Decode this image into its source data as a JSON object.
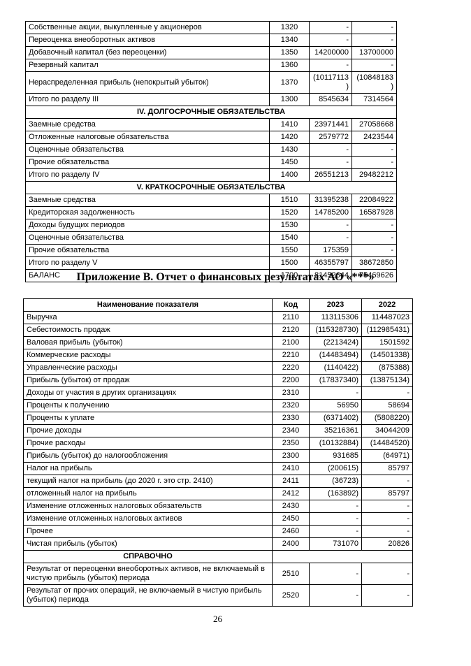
{
  "appendix_title": "Приложение В. Отчет о финансовых результатах АО «***»",
  "page_number": "26",
  "balance_table": {
    "rows": [
      {
        "type": "data",
        "label": "Собственные акции, выкупленные у акционеров",
        "code": "1320",
        "v2023": "-",
        "v2022": "-"
      },
      {
        "type": "data",
        "label": "Переоценка внеоборотных активов",
        "code": "1340",
        "v2023": "-",
        "v2022": "-"
      },
      {
        "type": "data",
        "label": "Добавочный капитал (без переоценки)",
        "code": "1350",
        "v2023": "14200000",
        "v2022": "13700000"
      },
      {
        "type": "data",
        "label": "Резервный капитал",
        "code": "1360",
        "v2023": "-",
        "v2022": "-"
      },
      {
        "type": "data",
        "label": "Нераспределенная прибыль (непокрытый убыток)",
        "code": "1370",
        "v2023": "(10117113)",
        "v2022": "(10848183)"
      },
      {
        "type": "data",
        "label": "Итого по разделу III",
        "code": "1300",
        "v2023": "8545634",
        "v2022": "7314564"
      },
      {
        "type": "section",
        "label": "IV. ДОЛГОСРОЧНЫЕ ОБЯЗАТЕЛЬСТВА"
      },
      {
        "type": "data",
        "label": "Заемные средства",
        "code": "1410",
        "v2023": "23971441",
        "v2022": "27058668"
      },
      {
        "type": "data",
        "label": "Отложенные налоговые обязательства",
        "code": "1420",
        "v2023": "2579772",
        "v2022": "2423544"
      },
      {
        "type": "data",
        "label": "Оценочные обязательства",
        "code": "1430",
        "v2023": "-",
        "v2022": "-"
      },
      {
        "type": "data",
        "label": "Прочие обязательства",
        "code": "1450",
        "v2023": "-",
        "v2022": "-"
      },
      {
        "type": "data",
        "label": "Итого по разделу IV",
        "code": "1400",
        "v2023": "26551213",
        "v2022": "29482212"
      },
      {
        "type": "section",
        "label": "V. КРАТКОСРОЧНЫЕ ОБЯЗАТЕЛЬСТВА"
      },
      {
        "type": "data",
        "label": "Заемные средства",
        "code": "1510",
        "v2023": "31395238",
        "v2022": "22084922"
      },
      {
        "type": "data",
        "label": "Кредиторская задолженность",
        "code": "1520",
        "v2023": "14785200",
        "v2022": "16587928"
      },
      {
        "type": "data",
        "label": "Доходы будущих периодов",
        "code": "1530",
        "v2023": "-",
        "v2022": "-"
      },
      {
        "type": "data",
        "label": "Оценочные обязательства",
        "code": "1540",
        "v2023": "-",
        "v2022": "-"
      },
      {
        "type": "data",
        "label": "Прочие обязательства",
        "code": "1550",
        "v2023": "175359",
        "v2022": "-"
      },
      {
        "type": "data",
        "label": "Итого по разделу V",
        "code": "1500",
        "v2023": "46355797",
        "v2022": "38672850"
      },
      {
        "type": "data",
        "label": "БАЛАНС",
        "code": "1700",
        "v2023": "81452644",
        "v2022": "75469626"
      }
    ]
  },
  "income_table": {
    "header": {
      "label": "Наименование показателя",
      "code": "Код",
      "y2023": "2023",
      "y2022": "2022"
    },
    "rows": [
      {
        "type": "data",
        "label": "Выручка",
        "code": "2110",
        "v2023": "113115306",
        "v2022": "114487023"
      },
      {
        "type": "data",
        "label": "Себестоимость продаж",
        "code": "2120",
        "v2023": "(115328730)",
        "v2022": "(112985431)"
      },
      {
        "type": "data",
        "label": "Валовая прибыль (убыток)",
        "code": "2100",
        "v2023": "(2213424)",
        "v2022": "1501592"
      },
      {
        "type": "data",
        "label": "Коммерческие расходы",
        "code": "2210",
        "v2023": "(14483494)",
        "v2022": "(14501338)"
      },
      {
        "type": "data",
        "label": "Управленческие расходы",
        "code": "2220",
        "v2023": "(1140422)",
        "v2022": "(875388)"
      },
      {
        "type": "data",
        "label": "Прибыль (убыток) от продаж",
        "code": "2200",
        "v2023": "(17837340)",
        "v2022": "(13875134)"
      },
      {
        "type": "data",
        "label": "Доходы от участия в других организациях",
        "code": "2310",
        "v2023": "-",
        "v2022": "-"
      },
      {
        "type": "data",
        "label": "Проценты к получению",
        "code": "2320",
        "v2023": "56950",
        "v2022": "58694"
      },
      {
        "type": "data",
        "label": "Проценты к уплате",
        "code": "2330",
        "v2023": "(6371402)",
        "v2022": "(5808220)"
      },
      {
        "type": "data",
        "label": "Прочие доходы",
        "code": "2340",
        "v2023": "35216361",
        "v2022": "34044209"
      },
      {
        "type": "data",
        "label": "Прочие расходы",
        "code": "2350",
        "v2023": "(10132884)",
        "v2022": "(14484520)"
      },
      {
        "type": "data",
        "label": "Прибыль (убыток) до налогообложения",
        "code": "2300",
        "v2023": "931685",
        "v2022": "(64971)"
      },
      {
        "type": "data",
        "label": "Налог на прибыль",
        "code": "2410",
        "v2023": "(200615)",
        "v2022": "85797"
      },
      {
        "type": "data",
        "label": "текущий налог на прибыль (до 2020 г. это стр. 2410)",
        "code": "2411",
        "v2023": "(36723)",
        "v2022": "-"
      },
      {
        "type": "data",
        "label": "отложенный налог на прибыль",
        "code": "2412",
        "v2023": "(163892)",
        "v2022": "85797"
      },
      {
        "type": "data",
        "label": "Изменение отложенных налоговых обязательств",
        "code": "2430",
        "v2023": "-",
        "v2022": "-"
      },
      {
        "type": "data",
        "label": "Изменение отложенных налоговых активов",
        "code": "2450",
        "v2023": "-",
        "v2022": "-"
      },
      {
        "type": "data",
        "label": "Прочее",
        "code": "2460",
        "v2023": "-",
        "v2022": "-"
      },
      {
        "type": "data",
        "label": "Чистая прибыль (убыток)",
        "code": "2400",
        "v2023": "731070",
        "v2022": "20826"
      },
      {
        "type": "section-note",
        "label": "СПРАВОЧНО"
      },
      {
        "type": "data",
        "label": "Результат от переоценки внеоборотных активов, не включаемый в чистую прибыль (убыток) периода",
        "code": "2510",
        "v2023": "-",
        "v2022": "-"
      },
      {
        "type": "data",
        "label": "Результат от прочих операций, не включаемый в чистую прибыль (убыток) периода",
        "code": "2520",
        "v2023": "-",
        "v2022": "-"
      }
    ]
  }
}
